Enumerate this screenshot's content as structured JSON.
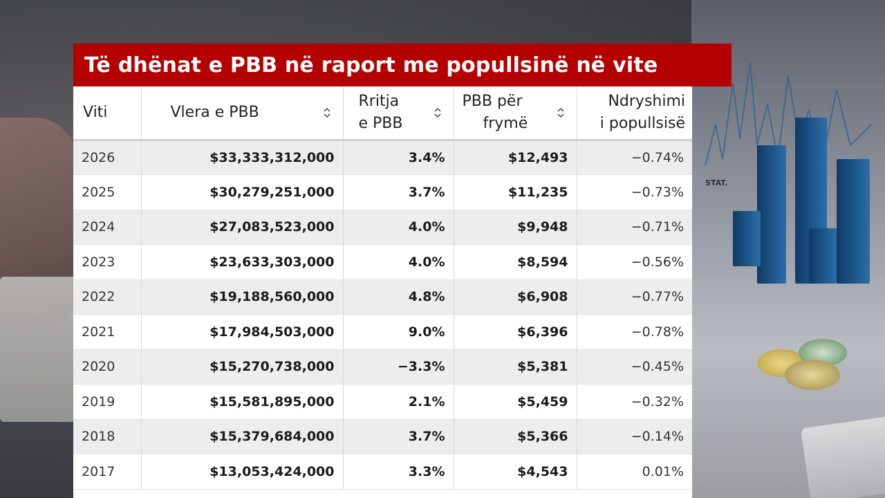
{
  "title": "Të dhënat e PBB në raport me popullsinë në vite",
  "icons": {
    "sort": "sort-icon"
  },
  "table": {
    "headers": [
      {
        "line1": "Viti",
        "line2": ""
      },
      {
        "line1": "Vlera e PBB",
        "line2": ""
      },
      {
        "line1": "Rritja",
        "line2": "e PBB"
      },
      {
        "line1": "PBB për",
        "line2": "frymë"
      },
      {
        "line1": "Ndryshimi",
        "line2": "i popullsisë"
      }
    ],
    "rows": [
      {
        "year": "2026",
        "gdp": "$33,333,312,000",
        "growth": "3.4%",
        "per_capita": "$12,493",
        "pop_change": "−0.74%"
      },
      {
        "year": "2025",
        "gdp": "$30,279,251,000",
        "growth": "3.7%",
        "per_capita": "$11,235",
        "pop_change": "−0.73%"
      },
      {
        "year": "2024",
        "gdp": "$27,083,523,000",
        "growth": "4.0%",
        "per_capita": "$9,948",
        "pop_change": "−0.71%"
      },
      {
        "year": "2023",
        "gdp": "$23,633,303,000",
        "growth": "4.0%",
        "per_capita": "$8,594",
        "pop_change": "−0.56%"
      },
      {
        "year": "2022",
        "gdp": "$19,188,560,000",
        "growth": "4.8%",
        "per_capita": "$6,908",
        "pop_change": "−0.77%"
      },
      {
        "year": "2021",
        "gdp": "$17,984,503,000",
        "growth": "9.0%",
        "per_capita": "$6,396",
        "pop_change": "−0.78%"
      },
      {
        "year": "2020",
        "gdp": "$15,270,738,000",
        "growth": "−3.3%",
        "per_capita": "$5,381",
        "pop_change": "−0.45%"
      },
      {
        "year": "2019",
        "gdp": "$15,581,895,000",
        "growth": "2.1%",
        "per_capita": "$5,459",
        "pop_change": "−0.32%"
      },
      {
        "year": "2018",
        "gdp": "$15,379,684,000",
        "growth": "3.7%",
        "per_capita": "$5,366",
        "pop_change": "−0.14%"
      },
      {
        "year": "2017",
        "gdp": "$13,053,424,000",
        "growth": "3.3%",
        "per_capita": "$4,543",
        "pop_change": "0.01%"
      }
    ]
  },
  "background": {
    "chart_label": "STAT."
  }
}
